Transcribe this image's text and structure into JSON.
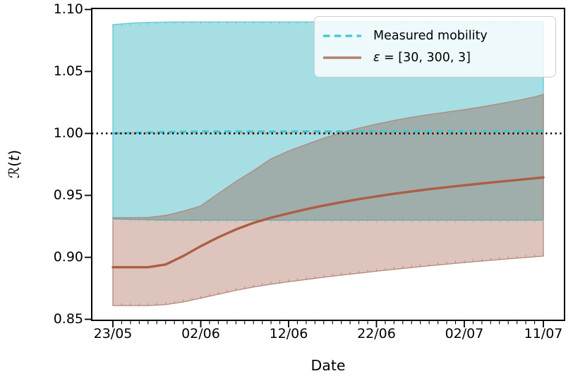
{
  "chart_data": {
    "type": "area",
    "title": "",
    "x_axis": {
      "label": "Date",
      "ticks": [
        {
          "label": "23/05",
          "day": 0
        },
        {
          "label": "02/06",
          "day": 10
        },
        {
          "label": "12/06",
          "day": 20
        },
        {
          "label": "22/06",
          "day": 30
        },
        {
          "label": "02/07",
          "day": 40
        },
        {
          "label": "11/07",
          "day": 49
        }
      ],
      "minor_tick_every_days": 1,
      "domain_days": [
        0,
        49
      ]
    },
    "y_axis": {
      "label_symbol": "ℛ",
      "label_open": "(",
      "label_var": "t",
      "label_close": ")",
      "ticks": [
        {
          "label": "1.10",
          "value": 1.1
        },
        {
          "label": "1.05",
          "value": 1.05
        },
        {
          "label": "1.00",
          "value": 1.0
        },
        {
          "label": "0.95",
          "value": 0.95
        },
        {
          "label": "0.90",
          "value": 0.9
        },
        {
          "label": "0.85",
          "value": 0.85
        }
      ],
      "ylim": [
        0.849,
        1.1006
      ]
    },
    "reference_line": {
      "value": 1.0,
      "style": "dotted",
      "color": "#000000"
    },
    "days": [
      0,
      2,
      4,
      6,
      8,
      10,
      12,
      14,
      16,
      18,
      20,
      22,
      24,
      26,
      28,
      30,
      32,
      34,
      36,
      38,
      40,
      42,
      44,
      46,
      48,
      49
    ],
    "bands": [
      {
        "name": "Measured mobility credible interval",
        "fill": "rgba(32,172,187,0.40)",
        "edge": "#5cc8d3",
        "edge_tick_marks": [
          "upper",
          "lower"
        ],
        "upper": [
          1.0878,
          1.089,
          1.0896,
          1.0899,
          1.09,
          1.09,
          1.09,
          1.09,
          1.09,
          1.09,
          1.09,
          1.09,
          1.09,
          1.09,
          1.09,
          1.09,
          1.09,
          1.09,
          1.09,
          1.09,
          1.09,
          1.09,
          1.09,
          1.09,
          1.09,
          1.09
        ],
        "lower": [
          0.931,
          0.9306,
          0.9303,
          0.9301,
          0.93,
          0.93,
          0.93,
          0.93,
          0.93,
          0.93,
          0.93,
          0.93,
          0.93,
          0.93,
          0.93,
          0.93,
          0.93,
          0.93,
          0.93,
          0.93,
          0.93,
          0.93,
          0.93,
          0.93,
          0.93,
          0.93
        ]
      },
      {
        "name": "ε = [30, 300, 3] credible interval",
        "fill": "rgba(142,63,37,0.30)",
        "edge": "#b18476",
        "edge_tick_marks": [
          "lower"
        ],
        "upper": [
          0.932,
          0.932,
          0.9321,
          0.9338,
          0.9372,
          0.9415,
          0.9515,
          0.9612,
          0.97,
          0.9795,
          0.9858,
          0.991,
          0.9962,
          1.0005,
          1.0042,
          1.0075,
          1.0105,
          1.013,
          1.0152,
          1.0172,
          1.0192,
          1.0215,
          1.024,
          1.0265,
          1.0295,
          1.0315
        ],
        "lower": [
          0.861,
          0.861,
          0.861,
          0.8618,
          0.864,
          0.867,
          0.8702,
          0.8733,
          0.876,
          0.8783,
          0.8803,
          0.8821,
          0.8839,
          0.8856,
          0.8872,
          0.8888,
          0.8903,
          0.8917,
          0.8931,
          0.8945,
          0.8958,
          0.897,
          0.8982,
          0.8993,
          0.9004,
          0.901
        ]
      }
    ],
    "lines": [
      {
        "name": "hidden dashed median",
        "color": "#e7b083",
        "style": "dashed",
        "width": 3.2,
        "dash": "4.5 12.5",
        "dashoffset": 7,
        "days": [
          0,
          49
        ],
        "values": [
          1.0003,
          1.0003
        ]
      },
      {
        "name": "Measured mobility",
        "color": "#44c5d1",
        "style": "dashed",
        "width": 3.2,
        "dash": "9.5 6.3",
        "dashoffset": 0,
        "days": [
          0,
          2,
          4,
          6,
          8,
          10,
          49
        ],
        "values": [
          1.0,
          1.0004,
          1.0008,
          1.0011,
          1.0013,
          1.0015,
          1.0017
        ]
      },
      {
        "name": "ε = [30, 300, 3]",
        "color": "#ae5d45",
        "style": "solid",
        "width": 3.4,
        "dash": "",
        "dashoffset": 0,
        "days": [
          0,
          2,
          4,
          6,
          8,
          10,
          12,
          14,
          16,
          18,
          20,
          22,
          24,
          26,
          28,
          30,
          32,
          34,
          36,
          38,
          40,
          42,
          44,
          46,
          48,
          49
        ],
        "values": [
          0.892,
          0.892,
          0.892,
          0.8942,
          0.901,
          0.909,
          0.9162,
          0.9225,
          0.9278,
          0.932,
          0.9355,
          0.9388,
          0.9418,
          0.9445,
          0.947,
          0.9492,
          0.9513,
          0.9532,
          0.955,
          0.9566,
          0.9581,
          0.9596,
          0.961,
          0.9624,
          0.9638,
          0.9645
        ]
      }
    ]
  },
  "legend": {
    "items": [
      {
        "label": "Measured mobility",
        "sample": "dashed-cyan",
        "color": "#44c5d1"
      },
      {
        "symbol": "ε",
        "rest": " = [30, 300, 3]",
        "sample": "solid-sienna",
        "color": "#ae5d45"
      }
    ]
  }
}
